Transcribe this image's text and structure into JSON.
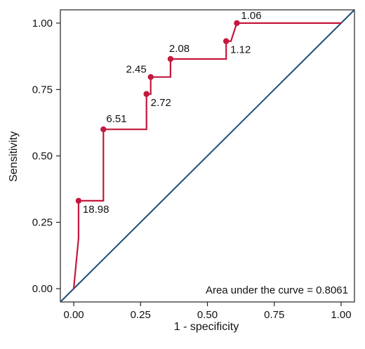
{
  "chart_data": {
    "type": "line",
    "title": "",
    "xlabel": "1 - specificity",
    "ylabel": "Sensitivity",
    "xlim": [
      -0.05,
      1.05
    ],
    "ylim": [
      -0.05,
      1.05
    ],
    "x_ticks": [
      0,
      0.25,
      0.5,
      0.75,
      1
    ],
    "x_tick_labels": [
      "0.00",
      "0.25",
      "0.50",
      "0.75",
      "1.00"
    ],
    "y_ticks": [
      0,
      0.25,
      0.5,
      0.75,
      1
    ],
    "y_tick_labels": [
      "0.00",
      "0.25",
      "0.50",
      "0.75",
      "1.00"
    ],
    "grid": false,
    "colors": {
      "roc": "#c4173c",
      "reference": "#1f4e79",
      "axis": "#222222"
    },
    "series": [
      {
        "type": "step",
        "x": [
          0,
          0.018,
          0.018,
          0.111,
          0.111,
          0.272,
          0.272,
          0.288,
          0.288,
          0.362,
          0.362,
          0.57,
          0.57,
          0.588,
          0.61,
          1.0
        ],
        "y": [
          0,
          0.19,
          0.331,
          0.331,
          0.6,
          0.6,
          0.733,
          0.733,
          0.797,
          0.797,
          0.865,
          0.865,
          0.932,
          0.932,
          1.0,
          1.0
        ]
      },
      {
        "type": "reference",
        "x": [
          -0.05,
          1.05
        ],
        "y": [
          -0.05,
          1.05
        ]
      }
    ],
    "cutpoints": [
      {
        "label": "18.98",
        "x": 0.018,
        "y": 0.331
      },
      {
        "label": "6.51",
        "x": 0.111,
        "y": 0.6
      },
      {
        "label": "2.72",
        "x": 0.272,
        "y": 0.733
      },
      {
        "label": "2.45",
        "x": 0.288,
        "y": 0.797
      },
      {
        "label": "2.08",
        "x": 0.362,
        "y": 0.865
      },
      {
        "label": "1.12",
        "x": 0.57,
        "y": 0.932
      },
      {
        "label": "1.06",
        "x": 0.61,
        "y": 1.0
      }
    ],
    "annotation": "Area under the curve = 0.8061"
  }
}
